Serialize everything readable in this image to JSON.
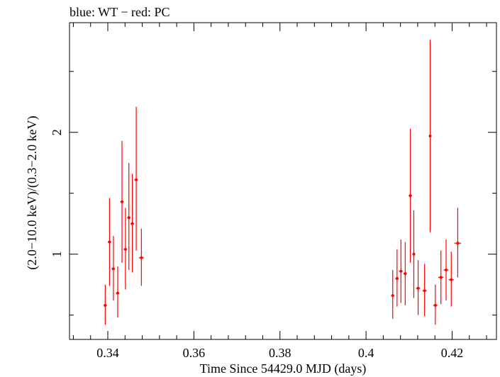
{
  "chart_data": {
    "type": "scatter",
    "title": "blue: WT − red: PC",
    "xlabel": "Time Since 54429.0 MJD (days)",
    "ylabel": "(2.0−10.0 keV)/(0.3−2.0 keV)",
    "xlim": [
      0.3311,
      0.4303
    ],
    "ylim": [
      0.3,
      2.9
    ],
    "x_ticks_major": [
      0.34,
      0.36,
      0.38,
      0.4,
      0.42
    ],
    "x_tick_labels": [
      "0.34",
      "0.36",
      "0.38",
      "0.4",
      "0.42"
    ],
    "y_ticks_major": [
      1,
      2
    ],
    "y_tick_labels": [
      "1",
      "2"
    ],
    "y_ticks_minor": [
      0.5,
      1.5,
      2.5
    ],
    "grid": false,
    "series": [
      {
        "name": "PC",
        "color": "#ff0000",
        "points": [
          {
            "x": 0.3394,
            "xerr": 0.0004,
            "y": 0.58,
            "ylo": 0.42,
            "yhi": 0.75
          },
          {
            "x": 0.3404,
            "xerr": 0.0004,
            "y": 1.1,
            "ylo": 0.74,
            "yhi": 1.46
          },
          {
            "x": 0.3413,
            "xerr": 0.0004,
            "y": 0.88,
            "ylo": 0.62,
            "yhi": 1.15
          },
          {
            "x": 0.3423,
            "xerr": 0.0004,
            "y": 0.68,
            "ylo": 0.48,
            "yhi": 0.9
          },
          {
            "x": 0.3433,
            "xerr": 0.0004,
            "y": 1.43,
            "ylo": 0.93,
            "yhi": 1.93
          },
          {
            "x": 0.3441,
            "xerr": 0.0004,
            "y": 1.04,
            "ylo": 0.71,
            "yhi": 1.38
          },
          {
            "x": 0.3449,
            "xerr": 0.0004,
            "y": 1.3,
            "ylo": 0.87,
            "yhi": 1.75
          },
          {
            "x": 0.3457,
            "xerr": 0.0004,
            "y": 1.25,
            "ylo": 0.85,
            "yhi": 1.66
          },
          {
            "x": 0.3466,
            "xerr": 0.0004,
            "y": 1.61,
            "ylo": 1.03,
            "yhi": 2.21
          },
          {
            "x": 0.3478,
            "xerr": 0.0006,
            "y": 0.97,
            "ylo": 0.74,
            "yhi": 1.21
          },
          {
            "x": 0.4062,
            "xerr": 0.0003,
            "y": 0.66,
            "ylo": 0.47,
            "yhi": 0.87
          },
          {
            "x": 0.4072,
            "xerr": 0.0004,
            "y": 0.8,
            "ylo": 0.57,
            "yhi": 1.04
          },
          {
            "x": 0.4081,
            "xerr": 0.0004,
            "y": 0.86,
            "ylo": 0.6,
            "yhi": 1.12
          },
          {
            "x": 0.4091,
            "xerr": 0.0004,
            "y": 0.84,
            "ylo": 0.58,
            "yhi": 1.1
          },
          {
            "x": 0.4103,
            "xerr": 0.0004,
            "y": 1.48,
            "ylo": 0.93,
            "yhi": 2.03
          },
          {
            "x": 0.4111,
            "xerr": 0.0003,
            "y": 1.0,
            "ylo": 0.64,
            "yhi": 1.36
          },
          {
            "x": 0.4121,
            "xerr": 0.0005,
            "y": 0.72,
            "ylo": 0.5,
            "yhi": 0.95
          },
          {
            "x": 0.4136,
            "xerr": 0.0005,
            "y": 0.7,
            "ylo": 0.49,
            "yhi": 0.92
          },
          {
            "x": 0.4149,
            "xerr": 0.0003,
            "y": 1.97,
            "ylo": 1.18,
            "yhi": 2.76
          },
          {
            "x": 0.4161,
            "xerr": 0.0005,
            "y": 0.58,
            "ylo": 0.42,
            "yhi": 0.75
          },
          {
            "x": 0.4174,
            "xerr": 0.0006,
            "y": 0.81,
            "ylo": 0.59,
            "yhi": 1.03
          },
          {
            "x": 0.4186,
            "xerr": 0.0006,
            "y": 0.87,
            "ylo": 0.62,
            "yhi": 1.12
          },
          {
            "x": 0.4198,
            "xerr": 0.0006,
            "y": 0.79,
            "ylo": 0.57,
            "yhi": 1.02
          },
          {
            "x": 0.4213,
            "xerr": 0.0008,
            "y": 1.09,
            "ylo": 0.81,
            "yhi": 1.38
          }
        ]
      }
    ]
  }
}
